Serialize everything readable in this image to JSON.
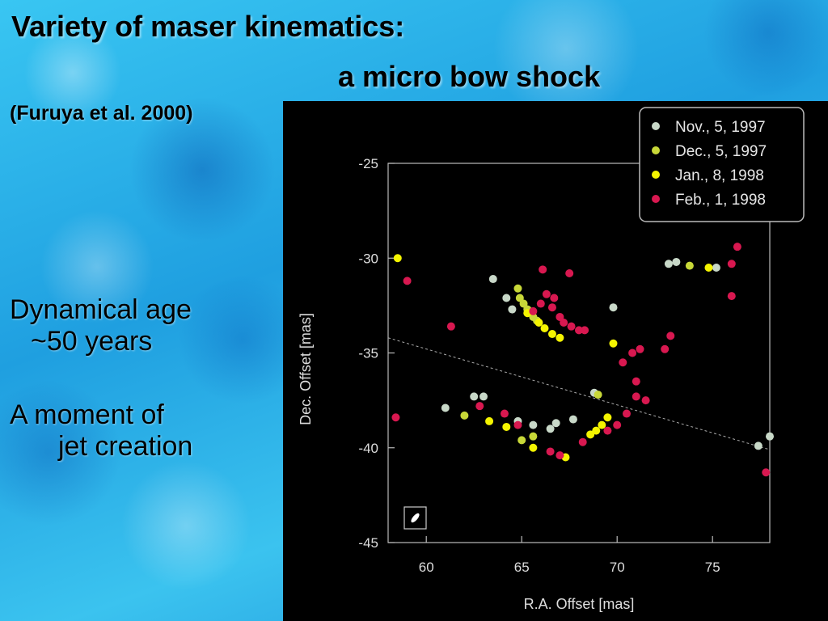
{
  "slide": {
    "title": "Variety of maser kinematics:",
    "subtitle": "a micro bow shock",
    "citation": "(Furuya et al. 2000)",
    "bullets": [
      {
        "line1": "Dynamical age",
        "line2": "~50 years"
      },
      {
        "line1": "A moment of",
        "line2": "jet creation"
      }
    ]
  },
  "chart_data": {
    "type": "scatter",
    "xlabel": "R.A. Offset [mas]",
    "ylabel": "Dec. Offset [mas]",
    "xlim": [
      58,
      78
    ],
    "ylim": [
      -45,
      -25
    ],
    "xticks": [
      60,
      65,
      70,
      75
    ],
    "yticks": [
      -25,
      -30,
      -35,
      -40,
      -45
    ],
    "x_axis_reversed": false,
    "grid": false,
    "legend_position": "top-right",
    "reference_line": {
      "points": [
        [
          58,
          -34.2
        ],
        [
          78,
          -40.1
        ]
      ],
      "style": "dashed"
    },
    "beam_box": true,
    "series": [
      {
        "name": "Nov., 5, 1997",
        "color": "#c8d8c8",
        "points": [
          [
            63.5,
            -31.1
          ],
          [
            64.2,
            -32.1
          ],
          [
            64.5,
            -32.7
          ],
          [
            61,
            -37.9
          ],
          [
            62.5,
            -37.3
          ],
          [
            63,
            -37.3
          ],
          [
            64.8,
            -38.6
          ],
          [
            65.6,
            -38.8
          ],
          [
            66.5,
            -39
          ],
          [
            66.8,
            -38.7
          ],
          [
            67.7,
            -38.5
          ],
          [
            68.8,
            -37.1
          ],
          [
            69.8,
            -32.6
          ],
          [
            72.7,
            -30.3
          ],
          [
            73.1,
            -30.2
          ],
          [
            75.2,
            -30.5
          ],
          [
            77.4,
            -39.9
          ],
          [
            78,
            -39.4
          ]
        ]
      },
      {
        "name": "Dec., 5, 1997",
        "color": "#c8d838",
        "points": [
          [
            64.8,
            -31.6
          ],
          [
            64.9,
            -32.1
          ],
          [
            65.1,
            -32.4
          ],
          [
            65.3,
            -32.7
          ],
          [
            65.6,
            -33.1
          ],
          [
            65.8,
            -33.3
          ],
          [
            62,
            -38.3
          ],
          [
            65,
            -39.6
          ],
          [
            65.6,
            -39.4
          ],
          [
            69,
            -37.2
          ],
          [
            73.8,
            -30.4
          ]
        ]
      },
      {
        "name": "Jan., 8, 1998",
        "color": "#f4f400",
        "points": [
          [
            58.5,
            -30
          ],
          [
            65.3,
            -32.9
          ],
          [
            65.9,
            -33.4
          ],
          [
            66.2,
            -33.7
          ],
          [
            66.6,
            -34
          ],
          [
            67,
            -34.2
          ],
          [
            63.3,
            -38.6
          ],
          [
            64.2,
            -38.9
          ],
          [
            65.6,
            -40
          ],
          [
            67.3,
            -40.5
          ],
          [
            68.6,
            -39.3
          ],
          [
            68.9,
            -39.1
          ],
          [
            69.2,
            -38.8
          ],
          [
            69.5,
            -38.4
          ],
          [
            69.8,
            -34.5
          ],
          [
            74.8,
            -30.5
          ]
        ]
      },
      {
        "name": "Feb., 1, 1998",
        "color": "#d81850",
        "points": [
          [
            59,
            -31.2
          ],
          [
            58.4,
            -38.4
          ],
          [
            61.3,
            -33.6
          ],
          [
            64.1,
            -38.2
          ],
          [
            66.1,
            -30.6
          ],
          [
            67.5,
            -30.8
          ],
          [
            66.3,
            -31.9
          ],
          [
            66.7,
            -32.1
          ],
          [
            66.6,
            -32.6
          ],
          [
            67,
            -33.1
          ],
          [
            67.2,
            -33.4
          ],
          [
            67.6,
            -33.6
          ],
          [
            68,
            -33.8
          ],
          [
            68.3,
            -33.8
          ],
          [
            66,
            -32.4
          ],
          [
            65.6,
            -32.8
          ],
          [
            62.8,
            -37.8
          ],
          [
            64.8,
            -38.8
          ],
          [
            66.5,
            -40.2
          ],
          [
            67,
            -40.4
          ],
          [
            68.2,
            -39.7
          ],
          [
            69.5,
            -39.1
          ],
          [
            70,
            -38.8
          ],
          [
            70.5,
            -38.2
          ],
          [
            70.3,
            -35.5
          ],
          [
            70.8,
            -35
          ],
          [
            71.2,
            -34.8
          ],
          [
            71,
            -36.5
          ],
          [
            71,
            -37.3
          ],
          [
            71.5,
            -37.5
          ],
          [
            72.5,
            -34.8
          ],
          [
            72.8,
            -34.1
          ],
          [
            76,
            -30.3
          ],
          [
            76.3,
            -29.4
          ],
          [
            76,
            -32
          ],
          [
            77.8,
            -41.3
          ]
        ]
      }
    ]
  }
}
